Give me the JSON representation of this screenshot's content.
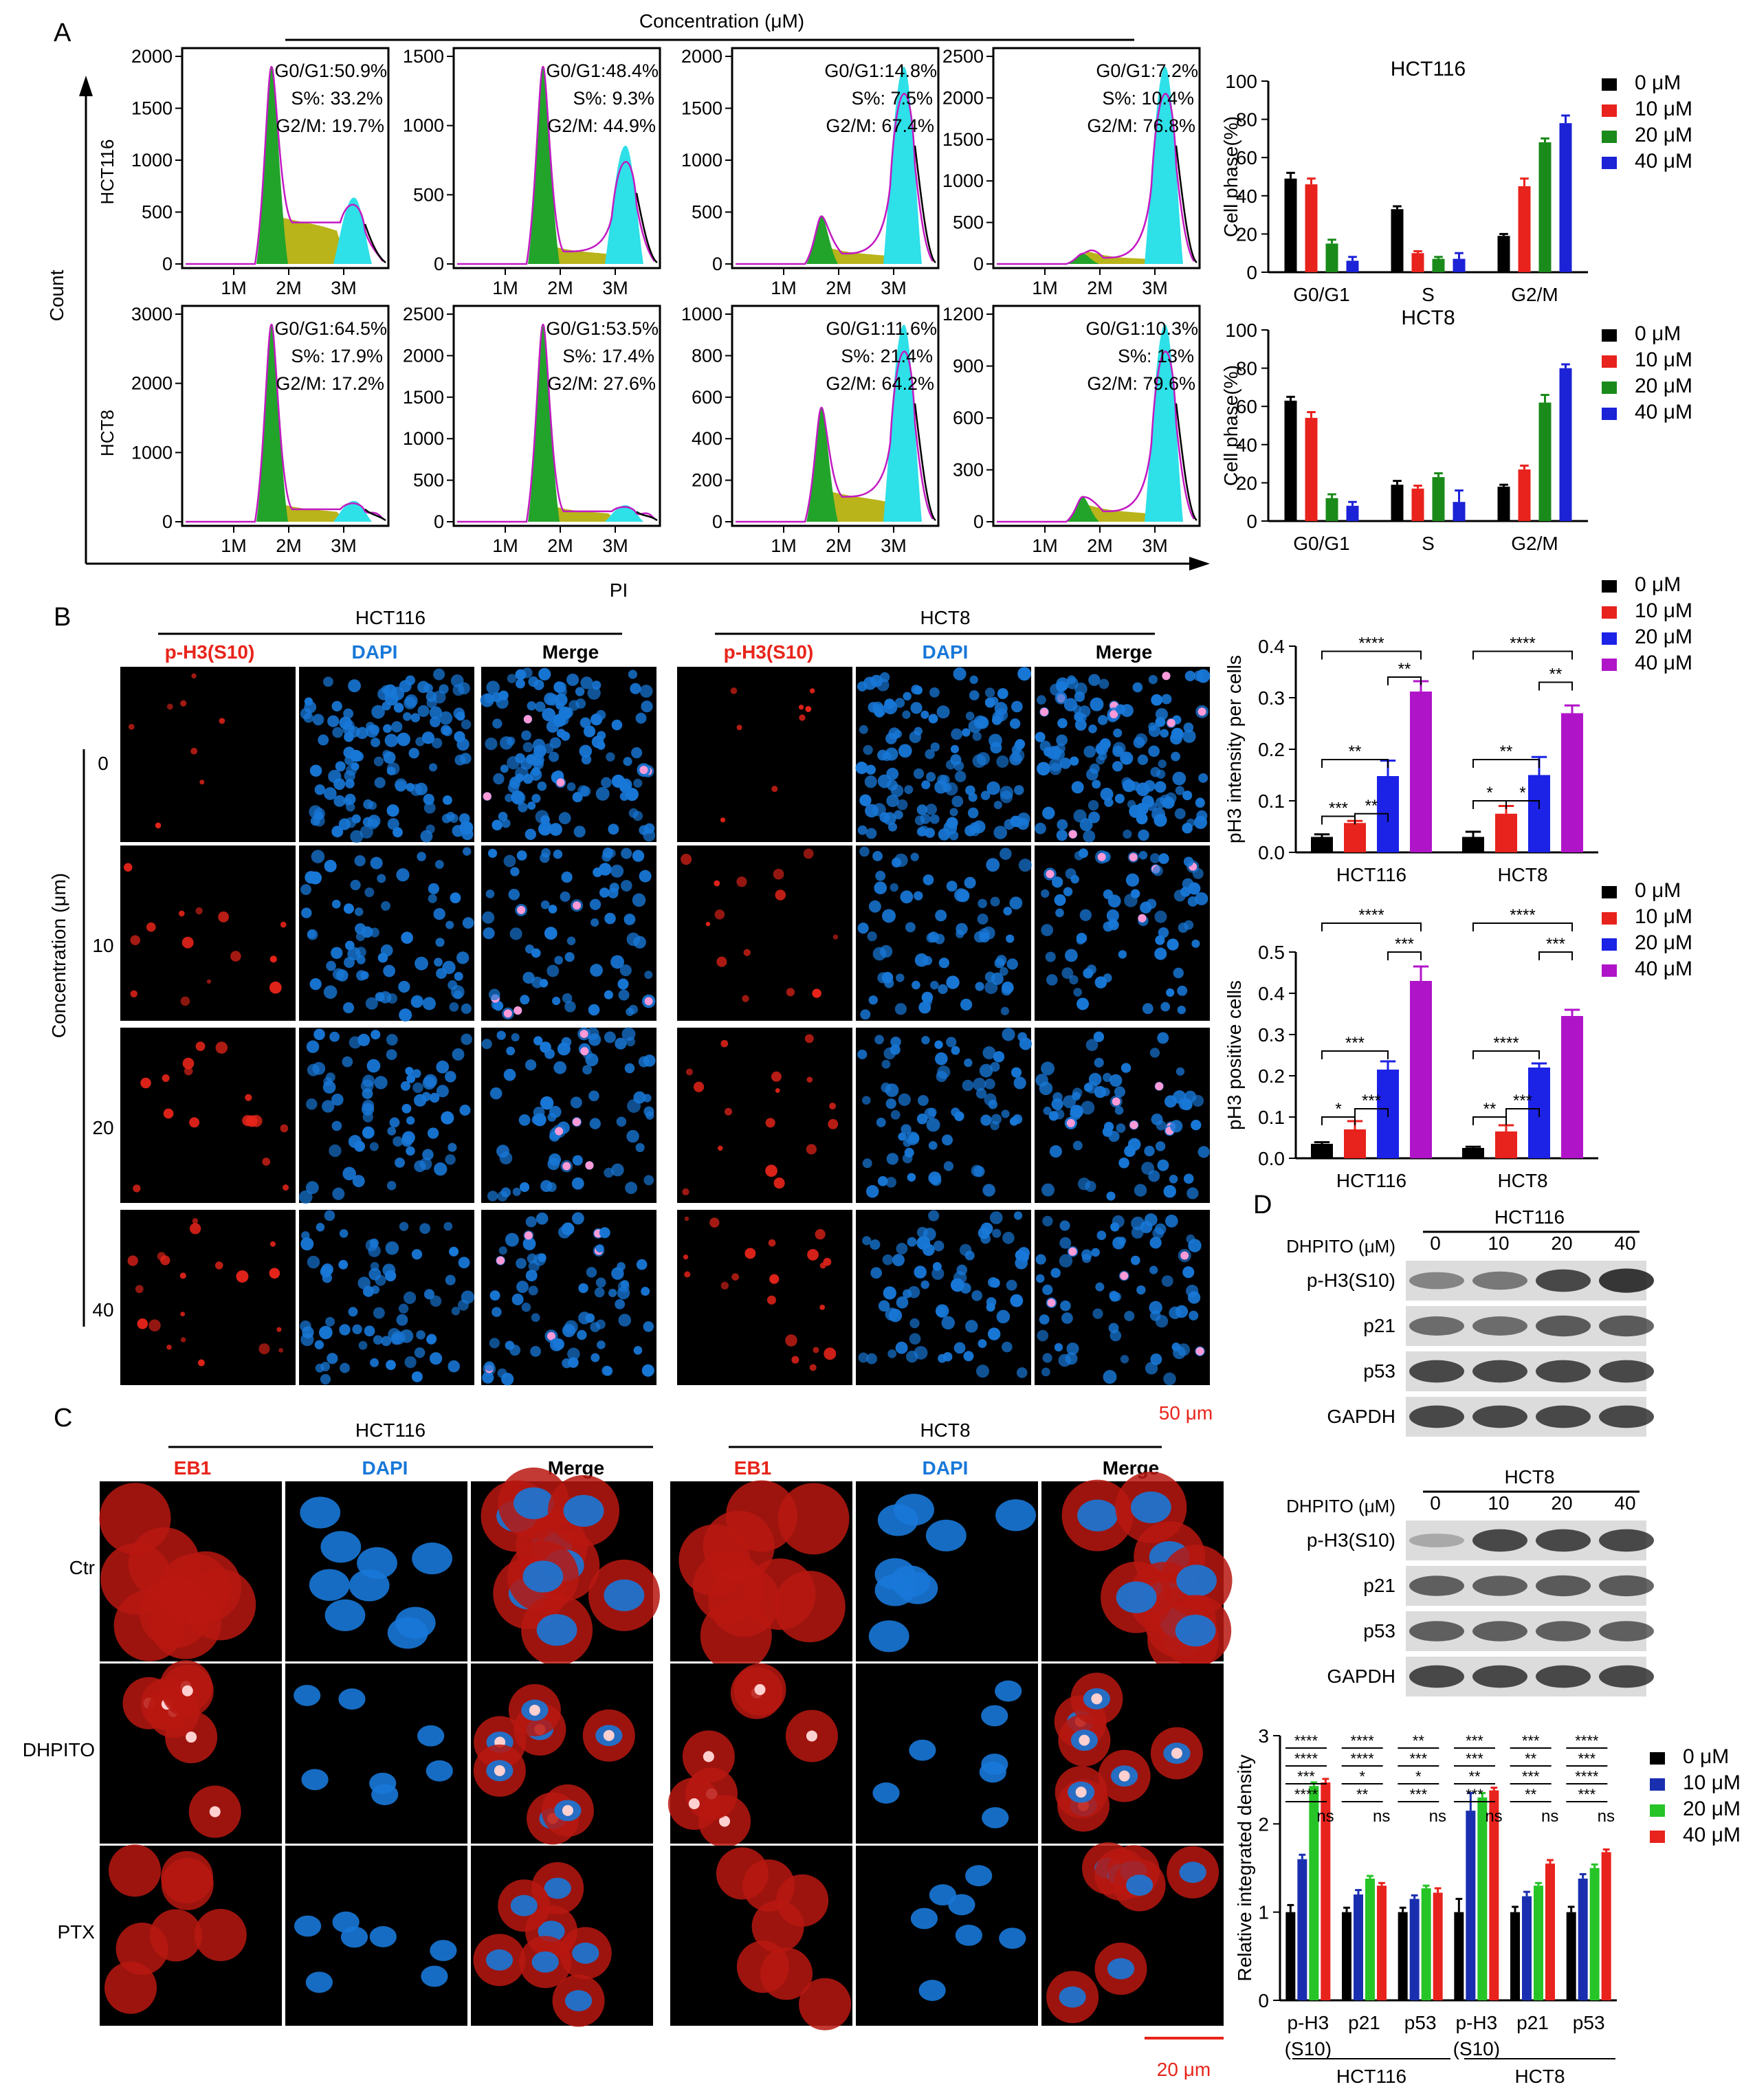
{
  "panel_labels": {
    "a": "A",
    "b": "B",
    "c": "C",
    "d": "D"
  },
  "colors": {
    "c0": "#000000",
    "c10": "#e8221c",
    "c20": "#1a8a1a",
    "c40": "#1c22d6",
    "purple": "#b014c8",
    "blue_b": "#1c22e6",
    "green_c": "#27c427",
    "navy_c": "#1a2fb0",
    "hist_g1": "#22a32a",
    "hist_s": "#b8b41a",
    "hist_g2": "#2ee0e8",
    "dapi": "#1878d8",
    "red_stain": "#e8241a"
  },
  "a": {
    "concentration_title": "Concentration (μM)",
    "conc": [
      "0",
      "10",
      "20",
      "40"
    ],
    "row_labels": [
      "HCT116",
      "HCT8"
    ],
    "y_axis": "Count",
    "x_axis": "PI",
    "hist": [
      {
        "ticks": [
          "2000",
          "1500",
          "1000",
          "500",
          "0"
        ],
        "xt": [
          "1M",
          "2M",
          "3M"
        ],
        "l1": "G0/G1:50.9%",
        "l2": "S%: 33.2%",
        "l3": "G2/M: 19.7%",
        "g1": 0.95,
        "g2": 0.32,
        "s": 0.2
      },
      {
        "ticks": [
          "1500",
          "1000",
          "500",
          "0"
        ],
        "xt": [
          "1M",
          "2M",
          "3M"
        ],
        "l1": "G0/G1:48.4%",
        "l2": "S%: 9.3%",
        "l3": "G2/M: 44.9%",
        "g1": 0.95,
        "g2": 0.57,
        "s": 0.06
      },
      {
        "ticks": [
          "2000",
          "1500",
          "1000",
          "500",
          "0"
        ],
        "xt": [
          "1M",
          "2M",
          "3M"
        ],
        "l1": "G0/G1:14.8%",
        "l2": "S%: 7.5%",
        "l3": "G2/M: 67.4%",
        "g1": 0.23,
        "g2": 0.95,
        "s": 0.05
      },
      {
        "ticks": [
          "2500",
          "2000",
          "1500",
          "1000",
          "500",
          "0"
        ],
        "xt": [
          "1M",
          "2M",
          "3M"
        ],
        "l1": "G0/G1:7.2%",
        "l2": "S%: 10.4%",
        "l3": "G2/M: 76.8%",
        "g1": 0.05,
        "g2": 0.95,
        "s": 0.03
      },
      {
        "ticks": [
          "3000",
          "2000",
          "1000",
          "0"
        ],
        "xt": [
          "1M",
          "2M",
          "3M"
        ],
        "l1": "G0/G1:64.5%",
        "l2": "S%: 17.9%",
        "l3": "G2/M: 17.2%",
        "g1": 0.95,
        "g2": 0.1,
        "s": 0.06
      },
      {
        "ticks": [
          "2500",
          "2000",
          "1500",
          "1000",
          "500",
          "0"
        ],
        "xt": [
          "1M",
          "2M",
          "3M"
        ],
        "l1": "G0/G1:53.5%",
        "l2": "S%: 17.4%",
        "l3": "G2/M: 27.6%",
        "g1": 0.95,
        "g2": 0.08,
        "s": 0.05
      },
      {
        "ticks": [
          "1000",
          "800",
          "600",
          "400",
          "200",
          "0"
        ],
        "xt": [
          "1M",
          "2M",
          "3M"
        ],
        "l1": "G0/G1:11.6%",
        "l2": "S%: 21.4%",
        "l3": "G2/M: 64.2%",
        "g1": 0.55,
        "g2": 0.95,
        "s": 0.12
      },
      {
        "ticks": [
          "1200",
          "900",
          "600",
          "300",
          "0"
        ],
        "xt": [
          "1M",
          "2M",
          "3M"
        ],
        "l1": "G0/G1:10.3%",
        "l2": "S%: 13%",
        "l3": "G2/M: 79.6%",
        "g1": 0.12,
        "g2": 0.95,
        "s": 0.05
      }
    ],
    "bar_ylabel": "Cell phase(%)",
    "legend": [
      "0 μM",
      "10 μM",
      "20 μM",
      "40 μM"
    ]
  },
  "b": {
    "cells": [
      "HCT116",
      "HCT8"
    ],
    "channels": [
      "p-H3(S10)",
      "DAPI",
      "Merge"
    ],
    "side_label": "Concentration (μm)",
    "rows": [
      "0",
      "10",
      "20",
      "40"
    ],
    "scale": "50 μm",
    "legend": [
      "0 μM",
      "10 μM",
      "20 μM",
      "40 μM"
    ],
    "chart1_ylabel": "pH3 intensity per cells",
    "chart2_ylabel": "pH3 positive cells",
    "stars": {
      "s1": "*",
      "s2": "**",
      "s3": "***",
      "s4": "****"
    }
  },
  "c": {
    "cells": [
      "HCT116",
      "HCT8"
    ],
    "channels": [
      "EB1",
      "DAPI",
      "Merge"
    ],
    "rows": [
      "Ctr",
      "DHPITO",
      "PTX"
    ],
    "scale": "20 μm"
  },
  "d": {
    "blot_title": "DHPITO (μM)",
    "cells": [
      "HCT116",
      "HCT8"
    ],
    "conc": [
      "0",
      "10",
      "20",
      "40"
    ],
    "proteins": [
      "p-H3(S10)",
      "p21",
      "p53",
      "GAPDH"
    ],
    "ylabel": "Relative integrated density",
    "groups": [
      "p-H3",
      "(S10)",
      "p21",
      "p53",
      "p-H3",
      "(S10)",
      "p21",
      "p53"
    ],
    "legend": [
      "0 μM",
      "10 μM",
      "20 μM",
      "40 μM"
    ],
    "ns": "ns"
  },
  "chart_data": [
    {
      "type": "bar",
      "title": "HCT116",
      "ylabel": "Cell phase(%)",
      "categories": [
        "G0/G1",
        "S",
        "G2/M"
      ],
      "ylim": [
        0,
        100
      ],
      "yticks": [
        "0",
        "20",
        "40",
        "60",
        "80",
        "100"
      ],
      "series": [
        {
          "name": "0 μM",
          "values": [
            49,
            33,
            19
          ],
          "err": [
            3,
            1.5,
            1
          ]
        },
        {
          "name": "10 μM",
          "values": [
            46,
            10,
            45
          ],
          "err": [
            3,
            1,
            4
          ]
        },
        {
          "name": "20 μM",
          "values": [
            15,
            7,
            68
          ],
          "err": [
            2,
            1,
            2
          ]
        },
        {
          "name": "40 μM",
          "values": [
            6,
            7,
            78
          ],
          "err": [
            2,
            3,
            4
          ]
        }
      ]
    },
    {
      "type": "bar",
      "title": "HCT8",
      "ylabel": "Cell phase(%)",
      "categories": [
        "G0/G1",
        "S",
        "G2/M"
      ],
      "ylim": [
        0,
        100
      ],
      "yticks": [
        "0",
        "20",
        "40",
        "60",
        "80",
        "100"
      ],
      "series": [
        {
          "name": "0 μM",
          "values": [
            63,
            19,
            18
          ],
          "err": [
            2,
            2,
            1
          ]
        },
        {
          "name": "10 μM",
          "values": [
            54,
            17,
            27
          ],
          "err": [
            3,
            1.5,
            2
          ]
        },
        {
          "name": "20 μM",
          "values": [
            12,
            23,
            62
          ],
          "err": [
            2,
            2,
            4
          ]
        },
        {
          "name": "40 μM",
          "values": [
            8,
            10,
            80
          ],
          "err": [
            2,
            6,
            2
          ]
        }
      ]
    },
    {
      "type": "bar",
      "ylabel": "pH3 intensity per cells",
      "categories": [
        "HCT116",
        "HCT8"
      ],
      "ylim": [
        0,
        0.4
      ],
      "yticks": [
        "0.0",
        "0.1",
        "0.2",
        "0.3",
        "0.4"
      ],
      "series": [
        {
          "name": "0 μM",
          "values": [
            0.03,
            0.03
          ],
          "err": [
            0.005,
            0.01
          ]
        },
        {
          "name": "10 μM",
          "values": [
            0.057,
            0.075
          ],
          "err": [
            0.004,
            0.015
          ]
        },
        {
          "name": "20 μM",
          "values": [
            0.148,
            0.15
          ],
          "err": [
            0.03,
            0.035
          ]
        },
        {
          "name": "40 μM",
          "values": [
            0.312,
            0.27
          ],
          "err": [
            0.02,
            0.015
          ]
        }
      ]
    },
    {
      "type": "bar",
      "ylabel": "pH3 positive cells",
      "categories": [
        "HCT116",
        "HCT8"
      ],
      "ylim": [
        0,
        0.5
      ],
      "yticks": [
        "0.0",
        "0.1",
        "0.2",
        "0.3",
        "0.4",
        "0.5"
      ],
      "series": [
        {
          "name": "0 μM",
          "values": [
            0.035,
            0.025
          ],
          "err": [
            0.004,
            0.003
          ]
        },
        {
          "name": "10 μM",
          "values": [
            0.07,
            0.065
          ],
          "err": [
            0.02,
            0.015
          ]
        },
        {
          "name": "20 μM",
          "values": [
            0.215,
            0.22
          ],
          "err": [
            0.02,
            0.01
          ]
        },
        {
          "name": "40 μM",
          "values": [
            0.43,
            0.345
          ],
          "err": [
            0.035,
            0.015
          ]
        }
      ]
    },
    {
      "type": "bar",
      "ylabel": "Relative integrated density",
      "categories": [
        "p-H3 (S10)",
        "p21",
        "p53",
        "p-H3 (S10)",
        "p21",
        "p53"
      ],
      "ylim": [
        0,
        3
      ],
      "yticks": [
        "0",
        "1",
        "2",
        "3"
      ],
      "series": [
        {
          "name": "0 μM",
          "values": [
            1,
            1,
            1,
            1,
            1,
            1
          ],
          "err": [
            0.08,
            0.05,
            0.05,
            0.15,
            0.06,
            0.06
          ]
        },
        {
          "name": "10 μM",
          "values": [
            1.6,
            1.2,
            1.15,
            2.15,
            1.18,
            1.38
          ],
          "err": [
            0.05,
            0.05,
            0.04,
            0.2,
            0.05,
            0.05
          ]
        },
        {
          "name": "20 μM",
          "values": [
            2.43,
            1.38,
            1.27,
            2.3,
            1.3,
            1.5
          ],
          "err": [
            0.04,
            0.03,
            0.03,
            0.05,
            0.03,
            0.04
          ]
        },
        {
          "name": "40 μM",
          "values": [
            2.47,
            1.3,
            1.22,
            2.38,
            1.55,
            1.68
          ],
          "err": [
            0.04,
            0.03,
            0.05,
            0.03,
            0.04,
            0.03
          ]
        }
      ]
    }
  ]
}
